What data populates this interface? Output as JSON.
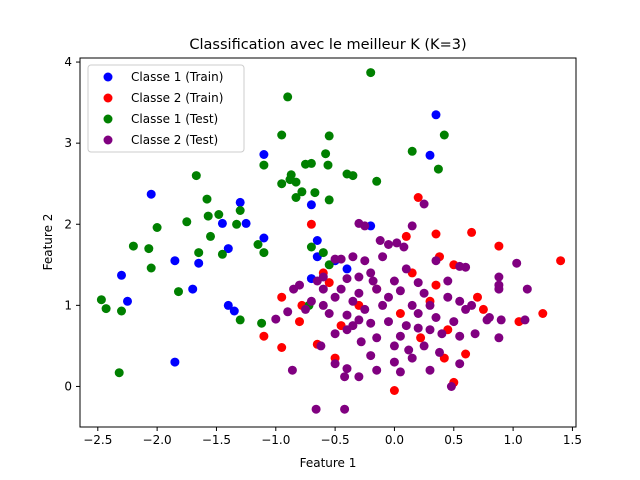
{
  "chart_data": {
    "type": "scatter",
    "title": "Classification avec le meilleur K (K=3)",
    "xlabel": "Feature 1",
    "ylabel": "Feature 2",
    "xlim": [
      -2.65,
      1.53
    ],
    "ylim": [
      -0.5,
      4.05
    ],
    "xticks": [
      -2.5,
      -2.0,
      -1.5,
      -1.0,
      -0.5,
      0.0,
      0.5,
      1.0,
      1.5
    ],
    "yticks": [
      0,
      1,
      2,
      3,
      4
    ],
    "grid": false,
    "legend_position": "top-left",
    "series": [
      {
        "name": "Classe 1 (Train)",
        "color": "#0000ff",
        "points": [
          [
            0.35,
            3.35
          ],
          [
            0.3,
            2.85
          ],
          [
            -1.1,
            2.86
          ],
          [
            -2.05,
            2.37
          ],
          [
            -1.3,
            2.27
          ],
          [
            -0.7,
            2.24
          ],
          [
            -1.45,
            2.01
          ],
          [
            -1.25,
            2.01
          ],
          [
            -1.1,
            1.83
          ],
          [
            -0.2,
            1.98
          ],
          [
            -0.65,
            1.8
          ],
          [
            -1.4,
            1.7
          ],
          [
            -1.85,
            1.55
          ],
          [
            -1.65,
            1.52
          ],
          [
            -0.65,
            1.6
          ],
          [
            -2.3,
            1.37
          ],
          [
            -0.7,
            1.33
          ],
          [
            -1.7,
            1.2
          ],
          [
            -2.25,
            1.05
          ],
          [
            -1.4,
            1.0
          ],
          [
            -1.35,
            0.93
          ],
          [
            -1.85,
            0.3
          ],
          [
            -0.5,
            1.55
          ],
          [
            -0.4,
            1.45
          ]
        ]
      },
      {
        "name": "Classe 2 (Train)",
        "color": "#ff0000",
        "points": [
          [
            1.4,
            1.55
          ],
          [
            0.65,
            1.9
          ],
          [
            0.2,
            2.33
          ],
          [
            0.35,
            1.88
          ],
          [
            0.88,
            1.73
          ],
          [
            0.1,
            1.85
          ],
          [
            0.38,
            1.6
          ],
          [
            0.5,
            1.5
          ],
          [
            0.35,
            1.25
          ],
          [
            1.25,
            0.9
          ],
          [
            1.05,
            0.8
          ],
          [
            0.75,
            0.95
          ],
          [
            0.3,
            1.05
          ],
          [
            0.45,
            0.7
          ],
          [
            0.6,
            0.4
          ],
          [
            0.5,
            0.05
          ],
          [
            0.0,
            -0.05
          ],
          [
            -0.5,
            0.35
          ],
          [
            -0.65,
            0.52
          ],
          [
            -0.95,
            0.48
          ],
          [
            -1.1,
            0.62
          ],
          [
            -0.8,
            0.8
          ],
          [
            -0.95,
            1.1
          ],
          [
            -0.7,
            2.0
          ],
          [
            -0.6,
            1.4
          ],
          [
            0.15,
            1.4
          ],
          [
            -0.15,
            1.2
          ],
          [
            0.05,
            0.9
          ],
          [
            -0.3,
            1.0
          ],
          [
            0.22,
            0.6
          ],
          [
            0.42,
            0.35
          ],
          [
            -0.45,
            0.75
          ],
          [
            -0.78,
            1.0
          ],
          [
            -0.55,
            1.28
          ],
          [
            0.7,
            1.1
          ]
        ]
      },
      {
        "name": "Classe 1 (Test)",
        "color": "#008000",
        "points": [
          [
            -0.2,
            3.87
          ],
          [
            -0.9,
            3.57
          ],
          [
            0.42,
            3.1
          ],
          [
            -0.95,
            3.1
          ],
          [
            0.15,
            2.9
          ],
          [
            -0.55,
            3.09
          ],
          [
            -0.7,
            2.75
          ],
          [
            -0.75,
            2.74
          ],
          [
            -0.58,
            2.87
          ],
          [
            -0.56,
            2.73
          ],
          [
            -0.4,
            2.62
          ],
          [
            -0.35,
            2.6
          ],
          [
            -0.15,
            2.53
          ],
          [
            0.37,
            2.68
          ],
          [
            -1.1,
            2.73
          ],
          [
            -0.87,
            2.61
          ],
          [
            -0.95,
            2.5
          ],
          [
            -0.88,
            2.55
          ],
          [
            -0.83,
            2.52
          ],
          [
            -0.78,
            2.4
          ],
          [
            -0.83,
            2.33
          ],
          [
            -0.67,
            2.39
          ],
          [
            -0.55,
            2.3
          ],
          [
            -1.67,
            2.6
          ],
          [
            -1.58,
            2.31
          ],
          [
            -1.48,
            2.12
          ],
          [
            -1.57,
            2.1
          ],
          [
            -1.3,
            2.17
          ],
          [
            -1.33,
            2.0
          ],
          [
            -1.75,
            2.03
          ],
          [
            -1.55,
            1.85
          ],
          [
            -1.45,
            1.63
          ],
          [
            -1.65,
            1.65
          ],
          [
            -2.0,
            1.96
          ],
          [
            -2.2,
            1.73
          ],
          [
            -2.07,
            1.7
          ],
          [
            -2.05,
            1.46
          ],
          [
            -1.1,
            1.65
          ],
          [
            -1.15,
            1.75
          ],
          [
            -0.7,
            1.72
          ],
          [
            -0.6,
            1.65
          ],
          [
            -0.55,
            1.5
          ],
          [
            -1.82,
            1.17
          ],
          [
            -2.47,
            1.07
          ],
          [
            -2.43,
            0.96
          ],
          [
            -2.3,
            0.93
          ],
          [
            -1.3,
            0.82
          ],
          [
            -1.12,
            0.78
          ],
          [
            -2.32,
            0.17
          ],
          [
            -0.72,
            1.0
          ]
        ]
      },
      {
        "name": "Classe 2 (Test)",
        "color": "#800080",
        "points": [
          [
            -0.3,
            2.01
          ],
          [
            -0.25,
            1.98
          ],
          [
            0.25,
            2.25
          ],
          [
            0.15,
            1.98
          ],
          [
            -0.12,
            1.8
          ],
          [
            0.02,
            1.77
          ],
          [
            0.08,
            1.72
          ],
          [
            -0.05,
            1.75
          ],
          [
            -0.35,
            1.6
          ],
          [
            -0.45,
            1.57
          ],
          [
            -0.5,
            1.57
          ],
          [
            -0.25,
            1.55
          ],
          [
            -0.1,
            1.6
          ],
          [
            0.35,
            1.55
          ],
          [
            0.55,
            1.48
          ],
          [
            0.6,
            1.47
          ],
          [
            0.1,
            1.45
          ],
          [
            -0.2,
            1.4
          ],
          [
            -0.3,
            1.35
          ],
          [
            -0.4,
            1.33
          ],
          [
            -0.6,
            1.35
          ],
          [
            -0.65,
            1.3
          ],
          [
            -0.8,
            1.25
          ],
          [
            -0.85,
            1.2
          ],
          [
            -0.45,
            1.2
          ],
          [
            -0.3,
            1.15
          ],
          [
            -0.15,
            1.2
          ],
          [
            0.05,
            1.18
          ],
          [
            0.25,
            1.15
          ],
          [
            0.45,
            1.1
          ],
          [
            0.55,
            1.05
          ],
          [
            0.65,
            1.0
          ],
          [
            0.8,
            0.85
          ],
          [
            -0.7,
            1.05
          ],
          [
            -0.6,
            1.0
          ],
          [
            -0.75,
            0.95
          ],
          [
            -0.55,
            0.9
          ],
          [
            -0.4,
            0.88
          ],
          [
            -0.3,
            0.82
          ],
          [
            -0.2,
            0.78
          ],
          [
            -0.05,
            0.8
          ],
          [
            0.1,
            0.75
          ],
          [
            0.2,
            0.72
          ],
          [
            0.3,
            0.7
          ],
          [
            0.4,
            0.65
          ],
          [
            0.55,
            0.62
          ],
          [
            0.68,
            0.65
          ],
          [
            -0.9,
            0.92
          ],
          [
            -1.0,
            0.83
          ],
          [
            -0.5,
            0.65
          ],
          [
            -0.4,
            0.7
          ],
          [
            -0.28,
            0.55
          ],
          [
            -0.15,
            0.6
          ],
          [
            0.0,
            0.5
          ],
          [
            0.12,
            0.45
          ],
          [
            0.25,
            0.5
          ],
          [
            0.38,
            0.42
          ],
          [
            -0.62,
            0.5
          ],
          [
            -0.5,
            0.28
          ],
          [
            -0.4,
            0.22
          ],
          [
            -0.3,
            0.12
          ],
          [
            -0.2,
            0.38
          ],
          [
            0.0,
            0.3
          ],
          [
            0.15,
            0.35
          ],
          [
            0.3,
            0.2
          ],
          [
            0.55,
            0.28
          ],
          [
            0.48,
            0.0
          ],
          [
            -0.42,
            0.12
          ],
          [
            -0.15,
            0.2
          ],
          [
            0.05,
            0.18
          ],
          [
            -0.86,
            0.2
          ],
          [
            -0.66,
            -0.28
          ],
          [
            -0.42,
            -0.28
          ],
          [
            0.88,
            1.35
          ],
          [
            0.88,
            1.25
          ],
          [
            0.88,
            1.2
          ],
          [
            1.03,
            1.52
          ],
          [
            1.12,
            1.2
          ],
          [
            1.1,
            0.82
          ],
          [
            0.88,
            0.6
          ],
          [
            0.9,
            0.82
          ],
          [
            0.78,
            0.82
          ],
          [
            -0.35,
            1.05
          ],
          [
            -0.1,
            1.0
          ],
          [
            0.15,
            1.0
          ],
          [
            -0.6,
            1.2
          ],
          [
            -0.5,
            1.1
          ],
          [
            -0.25,
            0.95
          ],
          [
            0.2,
            0.9
          ],
          [
            0.35,
            0.85
          ],
          [
            -0.18,
            1.3
          ],
          [
            0.0,
            1.3
          ],
          [
            0.2,
            1.28
          ],
          [
            0.45,
            1.3
          ],
          [
            -0.05,
            1.1
          ],
          [
            0.3,
            1.0
          ],
          [
            -0.35,
            0.75
          ],
          [
            0.05,
            0.62
          ],
          [
            0.5,
            0.8
          ],
          [
            0.6,
            0.95
          ]
        ]
      }
    ]
  }
}
